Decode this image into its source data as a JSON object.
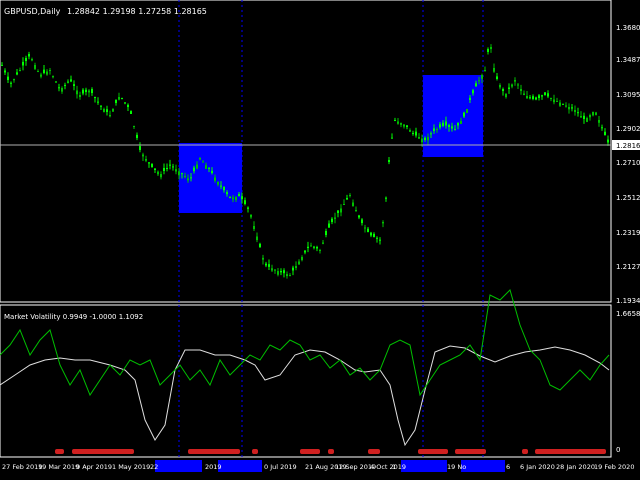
{
  "main_chart": {
    "title": "GBPUSD,Daily",
    "ohlc": "1.28842 1.29198 1.27258 1.28165",
    "current_price": "1.28165",
    "y_labels": [
      "1.34875",
      "1.30950",
      "1.29025",
      "1.27100",
      "1.25120",
      "1.23195",
      "1.21270",
      "1.19345"
    ],
    "top_label": "1.36800",
    "colors": {
      "bull": "#00c000",
      "bear": "#00ff00",
      "highlight": "#0000ff",
      "price_line": "#b0b0b0",
      "sep": "#0000ff",
      "axis": "#ffffff"
    }
  },
  "indicator": {
    "title": "Market Volatility 0.9949 -1.0000 1.1092",
    "top_label": "1.6658",
    "zero_label": "0",
    "colors": {
      "green": "#00c000",
      "white": "#e0e0e0",
      "red": "#d02020"
    }
  },
  "x_axis": {
    "labels": [
      "27 Feb 2019",
      "19 Mar 2019",
      "9 Apr 2019",
      "1 May 2019",
      "22",
      "2019",
      "0 Jul 2019",
      "21 Aug 2019",
      "12 Sep 2019",
      "4 Oct 2019",
      "1",
      "19 No",
      "6",
      "6 Jan 2020",
      "28 Jan 2020",
      "19 Feb 2020"
    ]
  }
}
